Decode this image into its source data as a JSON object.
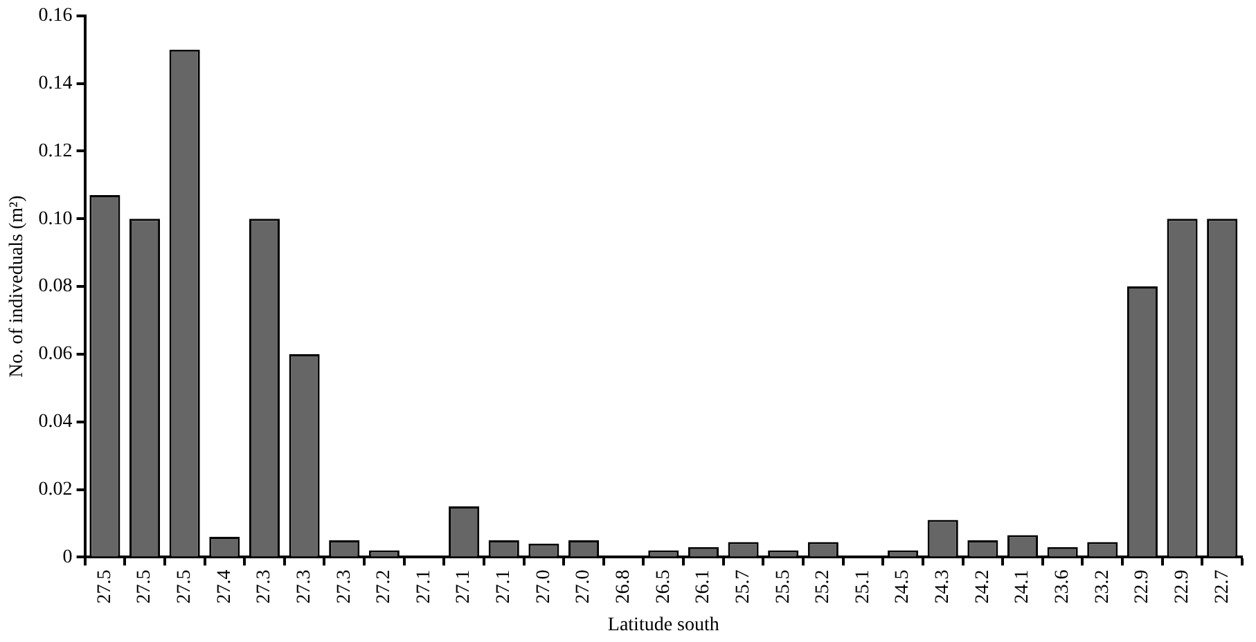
{
  "chart_data": {
    "type": "bar",
    "xlabel": "Latitude south",
    "ylabel": "No. of indiveduals (m²)",
    "categories": [
      "27.5",
      "27.5",
      "27.5",
      "27.4",
      "27.3",
      "27.3",
      "27.3",
      "27.2",
      "27.1",
      "27.1",
      "27.1",
      "27.0",
      "27.0",
      "26.8",
      "26.5",
      "26.1",
      "25.7",
      "25.5",
      "25.2",
      "25.1",
      "24.5",
      "24.3",
      "24.2",
      "24.1",
      "23.6",
      "23.2",
      "22.9",
      "22.9",
      "22.7"
    ],
    "values": [
      0.107,
      0.1,
      0.15,
      0.006,
      0.1,
      0.06,
      0.005,
      0.002,
      0,
      0.015,
      0.005,
      0.004,
      0.005,
      0,
      0.002,
      0.003,
      0.0045,
      0.002,
      0.0045,
      0,
      0.002,
      0.011,
      0.005,
      0.0065,
      0.003,
      0.0045,
      0.08,
      0.1,
      0.1
    ],
    "color": "#666666",
    "ylim": [
      0,
      0.16
    ],
    "yticks": [
      {
        "value": 0,
        "label": "0"
      },
      0.02,
      0.04,
      0.06,
      0.08,
      {
        "value": 0.1,
        "label": "0.10"
      },
      0.12,
      0.14,
      0.16
    ]
  }
}
